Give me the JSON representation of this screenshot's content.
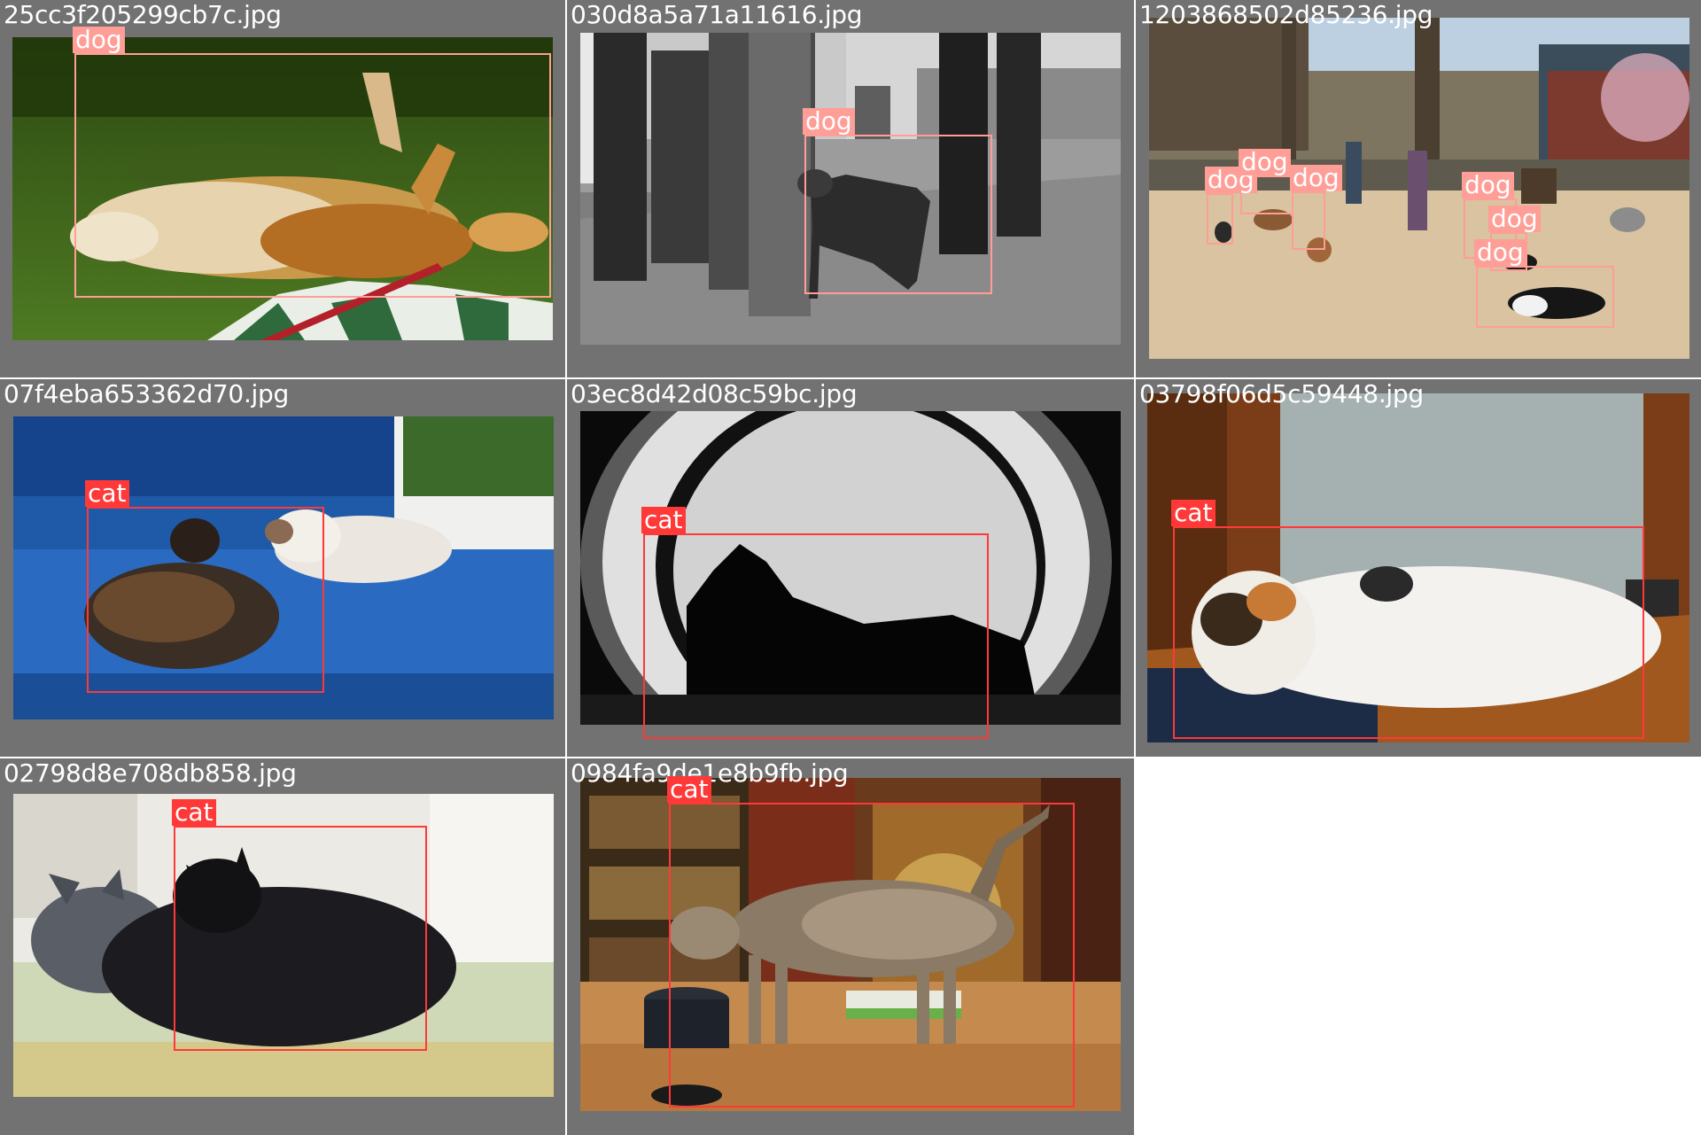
{
  "colors": {
    "panel_background": "#727272",
    "dog_label": "#ff9d97",
    "cat_label": "#ff3838"
  },
  "tiles": [
    {
      "filename": "25cc3f205299cb7c.jpg",
      "scene": "dog-on-grass",
      "detections": [
        {
          "label": "dog",
          "class": "dog"
        }
      ]
    },
    {
      "filename": "030d8a5a71a11616.jpg",
      "scene": "dog-street-bw",
      "detections": [
        {
          "label": "dog",
          "class": "dog"
        }
      ]
    },
    {
      "filename": "1203868502d85236.jpg",
      "scene": "dogs-park",
      "detections": [
        {
          "label": "dog",
          "class": "dog"
        },
        {
          "label": "dog",
          "class": "dog"
        },
        {
          "label": "dog",
          "class": "dog"
        },
        {
          "label": "dog",
          "class": "dog"
        },
        {
          "label": "dog",
          "class": "dog"
        },
        {
          "label": "dog",
          "class": "dog"
        }
      ]
    },
    {
      "filename": "07f4eba653362d70.jpg",
      "scene": "cats-blue-bench",
      "detections": [
        {
          "label": "cat",
          "class": "cat"
        }
      ]
    },
    {
      "filename": "03ec8d42d08c59bc.jpg",
      "scene": "cat-porthole-bw",
      "detections": [
        {
          "label": "cat",
          "class": "cat"
        }
      ]
    },
    {
      "filename": "03798f06d5c59448.jpg",
      "scene": "cat-on-boat",
      "detections": [
        {
          "label": "cat",
          "class": "cat"
        }
      ]
    },
    {
      "filename": "02798d8e708db858.jpg",
      "scene": "cats-sleeping",
      "detections": [
        {
          "label": "cat",
          "class": "cat"
        }
      ]
    },
    {
      "filename": "0984fa9de1e8b9fb.jpg",
      "scene": "tabby-on-table",
      "detections": [
        {
          "label": "cat",
          "class": "cat"
        }
      ]
    }
  ]
}
